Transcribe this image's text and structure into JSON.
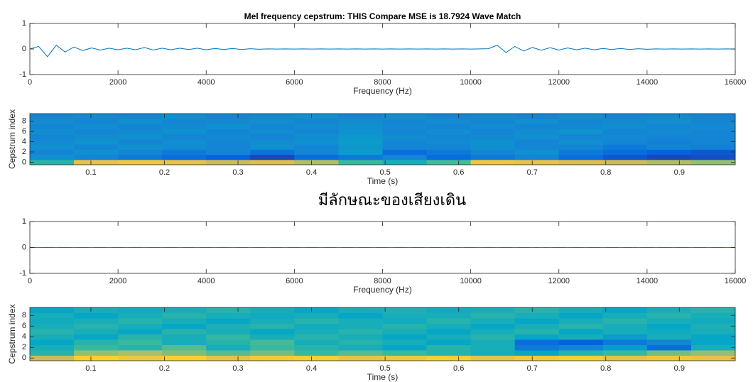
{
  "caption": "มีลักษณะของเสียงเดิน",
  "chart_data": [
    {
      "type": "line",
      "title": "Mel frequency cepstrum: THIS Compare MSE is 18.7924 Wave Match",
      "xlabel": "Frequency (Hz)",
      "xlim": [
        0,
        16000
      ],
      "xticks": [
        0,
        2000,
        4000,
        6000,
        8000,
        10000,
        12000,
        14000,
        16000
      ],
      "ylim": [
        -1,
        1
      ],
      "yticks": [
        -1,
        0,
        1
      ],
      "color": "#0072bd",
      "x": [
        0,
        200,
        400,
        600,
        800,
        1000,
        1200,
        1400,
        1600,
        1800,
        2000,
        2200,
        2400,
        2600,
        2800,
        3000,
        3200,
        3400,
        3600,
        3800,
        4000,
        4200,
        4400,
        4600,
        4800,
        5000,
        5200,
        5400,
        5600,
        5800,
        6000,
        6200,
        6400,
        6600,
        6800,
        7000,
        7200,
        7400,
        7600,
        7800,
        8000,
        8200,
        8400,
        8600,
        8800,
        9000,
        9200,
        9400,
        9600,
        9800,
        10000,
        10200,
        10400,
        10600,
        10800,
        11000,
        11200,
        11400,
        11600,
        11800,
        12000,
        12200,
        12400,
        12600,
        12800,
        13000,
        13200,
        13400,
        13600,
        13800,
        14000,
        14200,
        14400,
        14600,
        14800,
        15000,
        15200,
        15400,
        15600,
        15800,
        16000
      ],
      "values": [
        0,
        0.1,
        -0.3,
        0.15,
        -0.12,
        0.08,
        -0.06,
        0.04,
        -0.04,
        0.03,
        -0.03,
        0.03,
        -0.03,
        0.06,
        -0.04,
        0.03,
        -0.03,
        0.03,
        -0.02,
        0.03,
        -0.03,
        0.02,
        -0.02,
        0.02,
        -0.02,
        0.01,
        -0.01,
        0.005,
        -0.005,
        0.005,
        -0.005,
        0.005,
        -0.005,
        0.005,
        -0.005,
        0.005,
        -0.005,
        0.005,
        -0.005,
        0.005,
        -0.005,
        0.005,
        -0.005,
        0.005,
        -0.005,
        0.005,
        -0.005,
        0.005,
        -0.005,
        0.005,
        -0.005,
        0.005,
        0.01,
        0.15,
        -0.14,
        0.1,
        -0.08,
        0.06,
        -0.05,
        0.05,
        -0.04,
        0.04,
        -0.03,
        0.03,
        -0.03,
        0.02,
        -0.02,
        0.02,
        -0.02,
        0.01,
        -0.01,
        0.005,
        -0.005,
        0.005,
        -0.005,
        0.005,
        -0.005,
        0.005,
        -0.005,
        0.005,
        -0.005
      ]
    },
    {
      "type": "heatmap",
      "xlabel": "Time (s)",
      "ylabel": "Cepstrum index",
      "colormap": "parula",
      "xlim": [
        0.017,
        0.976
      ],
      "xticks": [
        0.1,
        0.2,
        0.3,
        0.4,
        0.5,
        0.6,
        0.7,
        0.8,
        0.9
      ],
      "ylim": [
        -0.5,
        9.5
      ],
      "yticks": [
        0,
        2,
        4,
        6,
        8
      ],
      "zlim": [
        0,
        1
      ],
      "z": [
        [
          0.55,
          0.9,
          0.92,
          0.9,
          0.85,
          0.88,
          0.8,
          0.6,
          0.5,
          0.62,
          0.92,
          0.9,
          0.88,
          0.85,
          0.8,
          0.75
        ],
        [
          0.35,
          0.3,
          0.25,
          0.2,
          0.15,
          0.08,
          0.2,
          0.25,
          0.3,
          0.2,
          0.25,
          0.3,
          0.2,
          0.12,
          0.08,
          0.1
        ],
        [
          0.3,
          0.35,
          0.3,
          0.25,
          0.3,
          0.22,
          0.3,
          0.4,
          0.2,
          0.25,
          0.3,
          0.35,
          0.25,
          0.2,
          0.15,
          0.12
        ],
        [
          0.35,
          0.3,
          0.35,
          0.32,
          0.3,
          0.35,
          0.3,
          0.38,
          0.3,
          0.3,
          0.35,
          0.3,
          0.3,
          0.25,
          0.3,
          0.28
        ],
        [
          0.32,
          0.36,
          0.3,
          0.34,
          0.3,
          0.33,
          0.35,
          0.4,
          0.3,
          0.32,
          0.35,
          0.3,
          0.34,
          0.3,
          0.28,
          0.3
        ],
        [
          0.3,
          0.33,
          0.35,
          0.3,
          0.32,
          0.3,
          0.34,
          0.38,
          0.33,
          0.3,
          0.32,
          0.35,
          0.3,
          0.32,
          0.3,
          0.3
        ],
        [
          0.34,
          0.3,
          0.32,
          0.35,
          0.3,
          0.33,
          0.3,
          0.36,
          0.3,
          0.34,
          0.3,
          0.33,
          0.36,
          0.3,
          0.32,
          0.3
        ],
        [
          0.3,
          0.34,
          0.3,
          0.32,
          0.35,
          0.3,
          0.33,
          0.35,
          0.32,
          0.3,
          0.34,
          0.3,
          0.32,
          0.34,
          0.3,
          0.32
        ],
        [
          0.33,
          0.3,
          0.35,
          0.3,
          0.32,
          0.34,
          0.3,
          0.34,
          0.3,
          0.33,
          0.3,
          0.35,
          0.3,
          0.32,
          0.34,
          0.3
        ],
        [
          0.3,
          0.32,
          0.3,
          0.34,
          0.3,
          0.32,
          0.35,
          0.3,
          0.34,
          0.3,
          0.32,
          0.3,
          0.34,
          0.3,
          0.32,
          0.3
        ]
      ]
    },
    {
      "type": "line",
      "xlabel": "Frequency (Hz)",
      "xlim": [
        0,
        16000
      ],
      "xticks": [
        0,
        2000,
        4000,
        6000,
        8000,
        10000,
        12000,
        14000,
        16000
      ],
      "ylim": [
        -1,
        1
      ],
      "yticks": [
        -1,
        0,
        1
      ],
      "color": "#0072bd",
      "x": [
        0,
        200,
        400,
        600,
        800,
        1000,
        1200,
        1400,
        1600,
        1800,
        2000,
        2200,
        2400,
        2600,
        2800,
        3000,
        3200,
        3400,
        3600,
        3800,
        4000,
        4200,
        4400,
        4600,
        4800,
        5000,
        5200,
        5400,
        5600,
        5800,
        6000,
        6200,
        6400,
        6600,
        6800,
        7000,
        7200,
        7400,
        7600,
        7800,
        8000,
        8200,
        8400,
        8600,
        8800,
        9000,
        9200,
        9400,
        9600,
        9800,
        10000,
        10200,
        10400,
        10600,
        10800,
        11000,
        11200,
        11400,
        11600,
        11800,
        12000,
        12200,
        12400,
        12600,
        12800,
        13000,
        13200,
        13400,
        13600,
        13800,
        14000,
        14200,
        14400,
        14600,
        14800,
        15000,
        15200,
        15400,
        15600,
        15800,
        16000
      ],
      "values": [
        0.004,
        -0.004,
        0.004,
        -0.004,
        0.004,
        -0.004,
        0.004,
        -0.004,
        0.004,
        -0.004,
        0.004,
        -0.004,
        0.004,
        -0.004,
        0.004,
        -0.004,
        0.004,
        -0.004,
        0.004,
        -0.004,
        0.004,
        -0.004,
        0.004,
        -0.004,
        0.004,
        -0.004,
        0.004,
        -0.004,
        0.004,
        -0.004,
        0.004,
        -0.004,
        0.004,
        -0.004,
        0.004,
        -0.004,
        0.004,
        -0.004,
        0.004,
        -0.004,
        0.004,
        -0.004,
        0.004,
        -0.004,
        0.004,
        -0.004,
        0.004,
        -0.004,
        0.004,
        -0.004,
        0.004,
        -0.004,
        0.004,
        -0.004,
        0.004,
        -0.004,
        0.004,
        -0.004,
        0.004,
        -0.004,
        0.004,
        -0.004,
        0.004,
        -0.004,
        0.004,
        -0.004,
        0.004,
        -0.004,
        0.004,
        -0.004,
        0.004,
        -0.004,
        0.004,
        -0.004,
        0.004,
        -0.004,
        0.004,
        -0.004,
        0.004,
        -0.004,
        0
      ]
    },
    {
      "type": "heatmap",
      "xlabel": "Time (s)",
      "ylabel": "Cepstrum index",
      "colormap": "parula",
      "xlim": [
        0.017,
        0.976
      ],
      "xticks": [
        0.1,
        0.2,
        0.3,
        0.4,
        0.5,
        0.6,
        0.7,
        0.8,
        0.9
      ],
      "ylim": [
        -0.5,
        9.5
      ],
      "yticks": [
        0,
        2,
        4,
        6,
        8
      ],
      "zlim": [
        0,
        1
      ],
      "z": [
        [
          0.85,
          0.95,
          0.92,
          0.95,
          0.9,
          0.93,
          0.95,
          0.9,
          0.92,
          0.95,
          0.9,
          0.93,
          0.95,
          0.9,
          0.92,
          0.9
        ],
        [
          0.55,
          0.75,
          0.8,
          0.72,
          0.65,
          0.7,
          0.6,
          0.65,
          0.6,
          0.55,
          0.5,
          0.45,
          0.55,
          0.6,
          0.7,
          0.75
        ],
        [
          0.5,
          0.6,
          0.55,
          0.65,
          0.5,
          0.6,
          0.55,
          0.5,
          0.45,
          0.55,
          0.5,
          0.25,
          0.3,
          0.4,
          0.2,
          0.5
        ],
        [
          0.45,
          0.55,
          0.6,
          0.5,
          0.55,
          0.62,
          0.5,
          0.55,
          0.5,
          0.45,
          0.5,
          0.2,
          0.15,
          0.25,
          0.3,
          0.45
        ],
        [
          0.5,
          0.45,
          0.55,
          0.5,
          0.58,
          0.5,
          0.55,
          0.5,
          0.45,
          0.5,
          0.55,
          0.45,
          0.5,
          0.4,
          0.5,
          0.45
        ],
        [
          0.55,
          0.5,
          0.45,
          0.55,
          0.5,
          0.45,
          0.5,
          0.55,
          0.5,
          0.45,
          0.5,
          0.55,
          0.45,
          0.5,
          0.48,
          0.5
        ],
        [
          0.5,
          0.55,
          0.5,
          0.45,
          0.52,
          0.55,
          0.48,
          0.5,
          0.55,
          0.5,
          0.45,
          0.5,
          0.55,
          0.5,
          0.45,
          0.52
        ],
        [
          0.48,
          0.5,
          0.55,
          0.5,
          0.45,
          0.5,
          0.55,
          0.5,
          0.48,
          0.55,
          0.5,
          0.45,
          0.5,
          0.55,
          0.5,
          0.48
        ],
        [
          0.5,
          0.45,
          0.5,
          0.55,
          0.5,
          0.48,
          0.5,
          0.45,
          0.5,
          0.5,
          0.55,
          0.5,
          0.45,
          0.5,
          0.55,
          0.5
        ],
        [
          0.45,
          0.5,
          0.48,
          0.5,
          0.55,
          0.5,
          0.45,
          0.5,
          0.52,
          0.48,
          0.5,
          0.55,
          0.5,
          0.45,
          0.5,
          0.55
        ]
      ]
    }
  ]
}
